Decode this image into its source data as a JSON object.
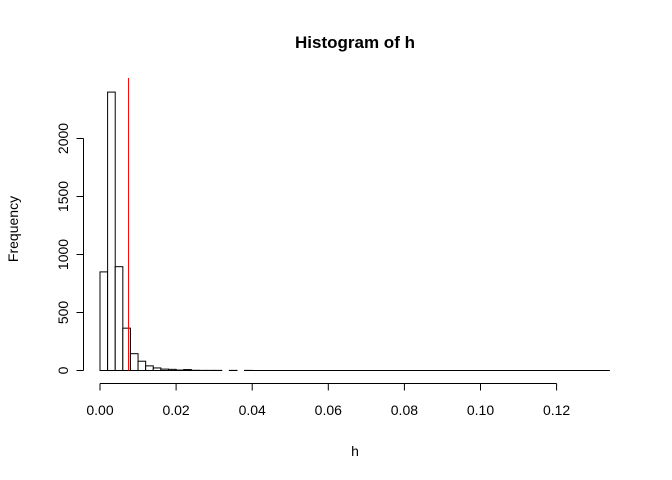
{
  "chart_data": {
    "type": "histogram",
    "title": "Histogram of h",
    "xlabel": "h",
    "ylabel": "Frequency",
    "bin_width": 0.002,
    "bins": [
      {
        "start": 0.0,
        "end": 0.002,
        "count": 850
      },
      {
        "start": 0.002,
        "end": 0.004,
        "count": 2400
      },
      {
        "start": 0.004,
        "end": 0.006,
        "count": 895
      },
      {
        "start": 0.006,
        "end": 0.008,
        "count": 365
      },
      {
        "start": 0.008,
        "end": 0.01,
        "count": 145
      },
      {
        "start": 0.01,
        "end": 0.012,
        "count": 80
      },
      {
        "start": 0.012,
        "end": 0.014,
        "count": 40
      },
      {
        "start": 0.014,
        "end": 0.016,
        "count": 22
      },
      {
        "start": 0.016,
        "end": 0.018,
        "count": 12
      },
      {
        "start": 0.018,
        "end": 0.02,
        "count": 10
      },
      {
        "start": 0.02,
        "end": 0.022,
        "count": 4
      },
      {
        "start": 0.022,
        "end": 0.024,
        "count": 8
      },
      {
        "start": 0.024,
        "end": 0.026,
        "count": 2
      },
      {
        "start": 0.026,
        "end": 0.028,
        "count": 1
      },
      {
        "start": 0.028,
        "end": 0.03,
        "count": 1
      },
      {
        "start": 0.03,
        "end": 0.032,
        "count": 1
      },
      {
        "start": 0.032,
        "end": 0.034,
        "count": 0
      },
      {
        "start": 0.034,
        "end": 0.036,
        "count": 1
      },
      {
        "start": 0.036,
        "end": 0.038,
        "count": 0
      },
      {
        "start": 0.038,
        "end": 0.04,
        "count": 1
      }
    ],
    "tail_bins_end": 0.134,
    "xlim": [
      0,
      0.134
    ],
    "ylim": [
      0,
      2400
    ],
    "xticks": [
      0.0,
      0.02,
      0.04,
      0.06,
      0.08,
      0.1,
      0.12
    ],
    "xtick_labels": [
      "0.00",
      "0.02",
      "0.04",
      "0.06",
      "0.08",
      "0.10",
      "0.12"
    ],
    "yticks": [
      0,
      500,
      1000,
      1500,
      2000
    ],
    "ytick_labels": [
      "0",
      "500",
      "1000",
      "1500",
      "2000"
    ],
    "vline": {
      "x": 0.0075,
      "color": "#ff0000"
    },
    "bar_fill": "#ffffff",
    "bar_stroke": "#000000"
  }
}
